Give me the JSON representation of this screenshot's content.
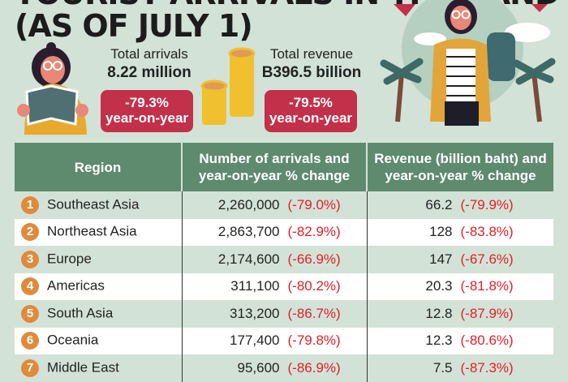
{
  "title": {
    "line1": "TOURIST ARRIVALS IN THAILAND",
    "line2": "(AS OF JULY 1)"
  },
  "summary": {
    "arrivals": {
      "label": "Total arrivals",
      "value": "8.22 million",
      "change": "-79.3%",
      "change_label": "year-on-year"
    },
    "revenue": {
      "label": "Total revenue",
      "value": "B396.5 billion",
      "change": "-79.5%",
      "change_label": "year-on-year"
    }
  },
  "colors": {
    "background": "#d3e2d7",
    "header": "#5e8a6e",
    "badge": "#c2304a",
    "negative": "#e0202a",
    "number_circle": "#e08a3c"
  },
  "chart_data": {
    "type": "table",
    "columns": [
      "Region",
      "Number of arrivals and year-on-year % change",
      "Revenue (billion baht) and year-on-year % change"
    ],
    "rows": [
      {
        "rank": "1",
        "region": "Southeast Asia",
        "arrivals": "2,260,000",
        "arrivals_change": "(-79.0%)",
        "revenue": "66.2",
        "revenue_change": "(-79.9%)"
      },
      {
        "rank": "2",
        "region": "Northeast Asia",
        "arrivals": "2,863,700",
        "arrivals_change": "(-82.9%)",
        "revenue": "128",
        "revenue_change": "(-83.8%)"
      },
      {
        "rank": "3",
        "region": "Europe",
        "arrivals": "2,174,600",
        "arrivals_change": "(-66.9%)",
        "revenue": "147",
        "revenue_change": "(-67.6%)"
      },
      {
        "rank": "4",
        "region": "Americas",
        "arrivals": "311,100",
        "arrivals_change": "(-80.2%)",
        "revenue": "20.3",
        "revenue_change": "(-81.8%)"
      },
      {
        "rank": "5",
        "region": "South Asia",
        "arrivals": "313,200",
        "arrivals_change": "(-86.7%)",
        "revenue": "12.8",
        "revenue_change": "(-87.9%)"
      },
      {
        "rank": "6",
        "region": "Oceania",
        "arrivals": "177,400",
        "arrivals_change": "(-79.8%)",
        "revenue": "12.3",
        "revenue_change": "(-80.6%)"
      },
      {
        "rank": "7",
        "region": "Middle East",
        "arrivals": "95,600",
        "arrivals_change": "(-86.9%)",
        "revenue": "7.5",
        "revenue_change": "(-87.3%)"
      }
    ]
  }
}
